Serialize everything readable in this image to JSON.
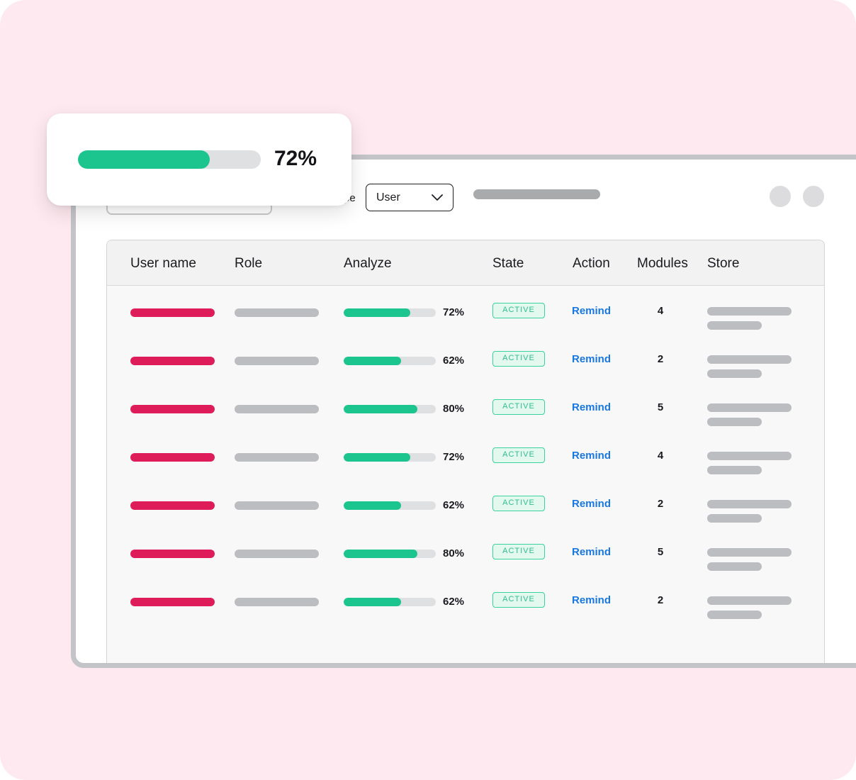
{
  "colors": {
    "background": "#fde9ef",
    "accent_green": "#1dc58e",
    "user_bar": "#df1c5a",
    "placeholder_gray": "#bcbdc0",
    "link_blue": "#1877e0",
    "badge_green": "#2fbf8a"
  },
  "toolbar": {
    "partial_label": "pe",
    "select_value": "User",
    "select_icon": "chevron-down-icon"
  },
  "table": {
    "headers": [
      "User name",
      "Role",
      "Analyze",
      "State",
      "Action",
      "Modules",
      "Store"
    ],
    "rows": [
      {
        "progress": 72,
        "progress_label": "72%",
        "state": "ACTIVE",
        "action": "Remind",
        "modules": "4"
      },
      {
        "progress": 62,
        "progress_label": "62%",
        "state": "ACTIVE",
        "action": "Remind",
        "modules": "2"
      },
      {
        "progress": 80,
        "progress_label": "80%",
        "state": "ACTIVE",
        "action": "Remind",
        "modules": "5"
      },
      {
        "progress": 72,
        "progress_label": "72%",
        "state": "ACTIVE",
        "action": "Remind",
        "modules": "4"
      },
      {
        "progress": 62,
        "progress_label": "62%",
        "state": "ACTIVE",
        "action": "Remind",
        "modules": "2"
      },
      {
        "progress": 80,
        "progress_label": "80%",
        "state": "ACTIVE",
        "action": "Remind",
        "modules": "5"
      },
      {
        "progress": 62,
        "progress_label": "62%",
        "state": "ACTIVE",
        "action": "Remind",
        "modules": "2"
      }
    ]
  },
  "progress_card": {
    "progress": 72,
    "label": "72%"
  }
}
